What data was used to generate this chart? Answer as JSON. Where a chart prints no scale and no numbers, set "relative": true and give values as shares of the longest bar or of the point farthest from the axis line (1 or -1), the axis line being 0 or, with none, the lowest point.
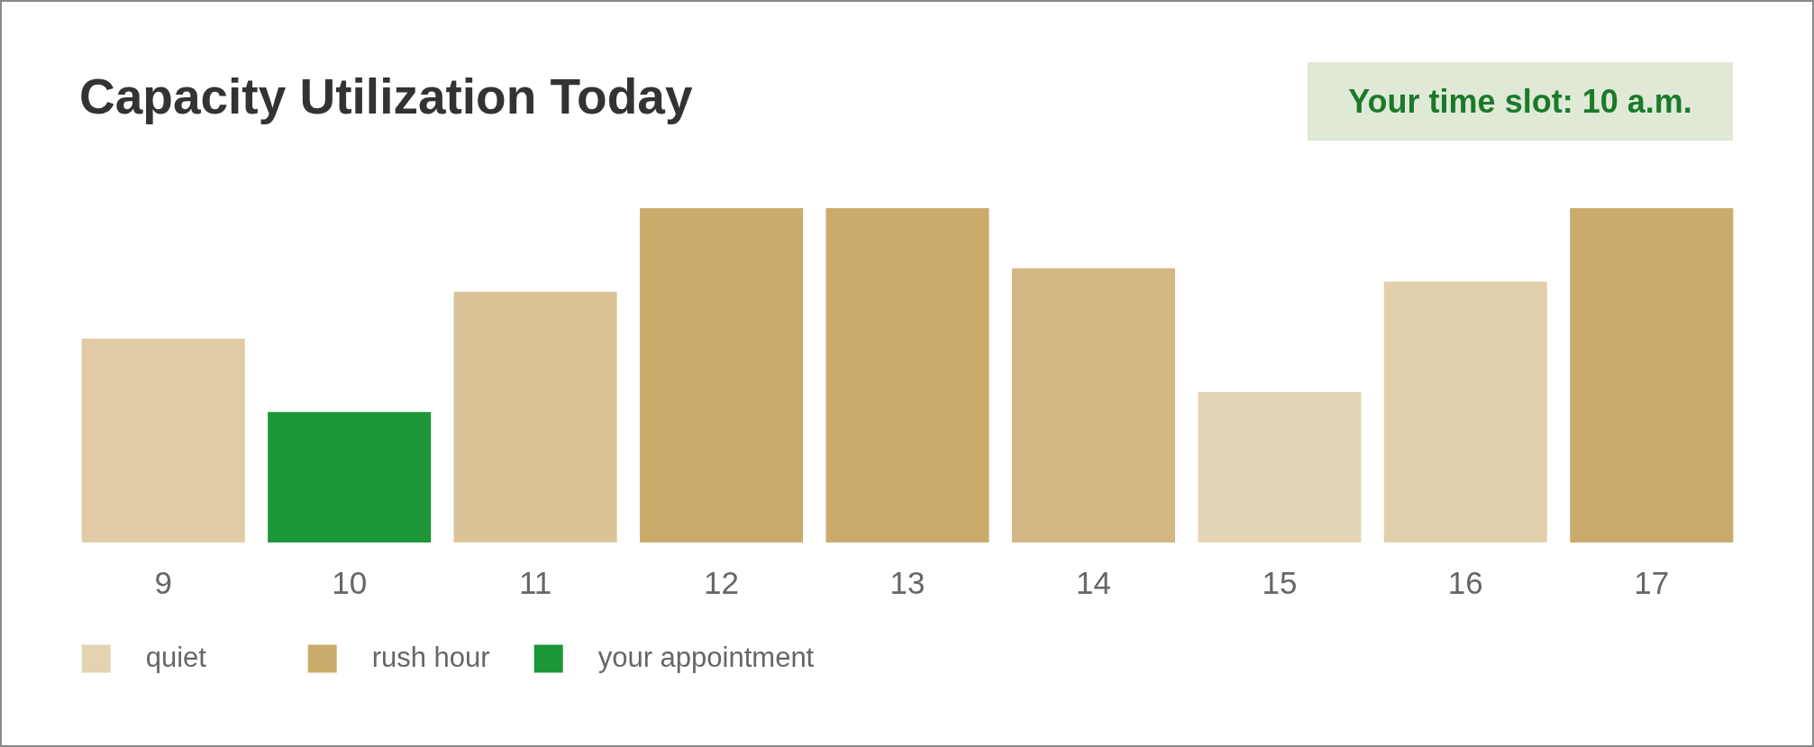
{
  "chart_data": {
    "type": "bar",
    "title": "Capacity Utilization Today",
    "annotations": [
      "Your time slot: 10 a.m."
    ],
    "categories": [
      "9",
      "10",
      "11",
      "12",
      "13",
      "14",
      "15",
      "16",
      "17"
    ],
    "relative": true,
    "legend": "bottom left",
    "series": [
      {
        "name": "quiet",
        "color": "#e3d3b3",
        "values": [
          0.61,
          null,
          0.75,
          null,
          null,
          null,
          0.45,
          0.78,
          null
        ],
        "colors": [
          "#e0cba4",
          null,
          "#dac497",
          null,
          null,
          null,
          "#e3d4b4",
          "#e2d0ac",
          null
        ]
      },
      {
        "name": "rush hour",
        "color": "#cbab6b",
        "values": [
          null,
          null,
          null,
          1,
          1,
          0.82,
          null,
          null,
          1
        ],
        "colors": [
          null,
          null,
          null,
          "#cbab6b",
          "#cbab6b",
          "#d3b884",
          null,
          null,
          "#cbab6b"
        ]
      },
      {
        "name": "your appointment",
        "color": "#1b9639",
        "values": [
          null,
          0.39,
          null,
          null,
          null,
          null,
          null,
          null,
          null
        ]
      }
    ]
  }
}
